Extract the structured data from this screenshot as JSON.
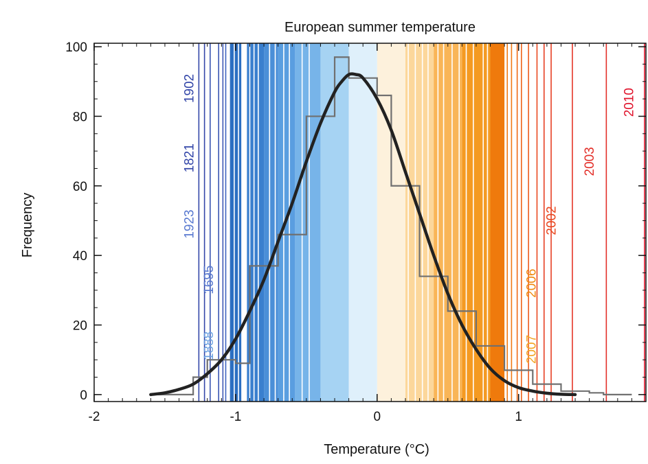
{
  "chart_data": {
    "type": "bar",
    "title": "European summer temperature",
    "xlabel": "Temperature (°C)",
    "ylabel": "Frequency",
    "xlim": [
      -2,
      1.9
    ],
    "ylim": [
      -2,
      101
    ],
    "x_ticks": [
      {
        "value": -2,
        "label": "-2"
      },
      {
        "value": -1,
        "label": "-1"
      },
      {
        "value": 0,
        "label": "0"
      },
      {
        "value": 1,
        "label": "1"
      }
    ],
    "y_ticks": [
      {
        "value": 0,
        "label": "0"
      },
      {
        "value": 20,
        "label": "20"
      },
      {
        "value": 40,
        "label": "40"
      },
      {
        "value": 60,
        "label": "60"
      },
      {
        "value": 80,
        "label": "80"
      },
      {
        "value": 100,
        "label": "100"
      }
    ],
    "grid": false,
    "background_bands": [
      {
        "x0": -1.04,
        "x1": -0.96,
        "color": "#2c6fc2"
      },
      {
        "x0": -0.92,
        "x1": -0.8,
        "color": "#3a7fce"
      },
      {
        "x0": -0.8,
        "x1": -0.7,
        "color": "#4b8fd8"
      },
      {
        "x0": -0.7,
        "x1": -0.58,
        "color": "#5a9ee0"
      },
      {
        "x0": -0.58,
        "x1": -0.4,
        "color": "#77b4e9"
      },
      {
        "x0": -0.4,
        "x1": -0.2,
        "color": "#a6d3f3"
      },
      {
        "x0": -0.2,
        "x1": 0.0,
        "color": "#dff0fb"
      },
      {
        "x0": 0.0,
        "x1": 0.2,
        "color": "#fdf1dc"
      },
      {
        "x0": 0.2,
        "x1": 0.4,
        "color": "#fcd79b"
      },
      {
        "x0": 0.4,
        "x1": 0.6,
        "color": "#f9b557"
      },
      {
        "x0": 0.6,
        "x1": 0.8,
        "color": "#f49a22"
      },
      {
        "x0": 0.8,
        "x1": 0.9,
        "color": "#ef7a0c"
      }
    ],
    "lines": [
      {
        "x": -1.26,
        "color": "#3346a8"
      },
      {
        "x": -1.22,
        "color": "#3346a8"
      },
      {
        "x": -1.18,
        "color": "#3a55b3"
      },
      {
        "x": -1.12,
        "color": "#3a55b3"
      },
      {
        "x": -1.09,
        "color": "#3a55b3"
      },
      {
        "x": -1.07,
        "color": "#3d62c0"
      },
      {
        "x": -1.01,
        "color": "#ffffff"
      },
      {
        "x": -0.98,
        "color": "#ffffff"
      },
      {
        "x": -0.9,
        "color": "#ffffff"
      },
      {
        "x": -0.87,
        "color": "#ffffff"
      },
      {
        "x": -0.84,
        "color": "#ffffff"
      },
      {
        "x": -0.76,
        "color": "#ffffff"
      },
      {
        "x": -0.72,
        "color": "#ffffff"
      },
      {
        "x": -0.66,
        "color": "#ffffff"
      },
      {
        "x": -0.62,
        "color": "#ffffff"
      },
      {
        "x": -0.53,
        "color": "#ffffff"
      },
      {
        "x": -0.48,
        "color": "#ffffff"
      },
      {
        "x": 0.22,
        "color": "#ffffff"
      },
      {
        "x": 0.27,
        "color": "#ffffff"
      },
      {
        "x": 0.32,
        "color": "#ffffff"
      },
      {
        "x": 0.36,
        "color": "#ffffff"
      },
      {
        "x": 0.43,
        "color": "#ffffff"
      },
      {
        "x": 0.47,
        "color": "#ffffff"
      },
      {
        "x": 0.53,
        "color": "#ffffff"
      },
      {
        "x": 0.58,
        "color": "#ffffff"
      },
      {
        "x": 0.63,
        "color": "#ffffff"
      },
      {
        "x": 0.68,
        "color": "#ffffff"
      },
      {
        "x": 0.75,
        "color": "#ffffff"
      },
      {
        "x": 0.78,
        "color": "#ffffff"
      },
      {
        "x": 0.92,
        "color": "#f07a14"
      },
      {
        "x": 0.95,
        "color": "#f07a14"
      },
      {
        "x": 0.99,
        "color": "#f06a14"
      },
      {
        "x": 1.02,
        "color": "#ee6218"
      },
      {
        "x": 1.07,
        "color": "#ec5a1c"
      },
      {
        "x": 1.13,
        "color": "#e94820"
      },
      {
        "x": 1.18,
        "color": "#e63e22"
      },
      {
        "x": 1.23,
        "color": "#e63e22"
      },
      {
        "x": 1.38,
        "color": "#e53526"
      },
      {
        "x": 1.62,
        "color": "#e3302a"
      },
      {
        "x": 1.89,
        "color": "#e0142c"
      }
    ],
    "year_labels": [
      {
        "label": "1902",
        "x": -1.26,
        "y": 88,
        "color": "#3346a8"
      },
      {
        "label": "1821",
        "x": -1.26,
        "y": 68,
        "color": "#3346a8"
      },
      {
        "label": "1923",
        "x": -1.26,
        "y": 49,
        "color": "#5a7ad0"
      },
      {
        "label": "1695",
        "x": -1.12,
        "y": 33,
        "color": "#5a7ad0"
      },
      {
        "label": "1888",
        "x": -1.12,
        "y": 14,
        "color": "#6aa0e0"
      },
      {
        "label": "2007",
        "x": 1.16,
        "y": 13,
        "color": "#f3a424"
      },
      {
        "label": "2006",
        "x": 1.16,
        "y": 32,
        "color": "#f08a10"
      },
      {
        "label": "2002",
        "x": 1.3,
        "y": 50,
        "color": "#e94820"
      },
      {
        "label": "2003",
        "x": 1.57,
        "y": 67,
        "color": "#e3302a"
      },
      {
        "label": "2010",
        "x": 1.85,
        "y": 84,
        "color": "#e0142c"
      }
    ],
    "histogram": {
      "bin_edges": [
        -1.6,
        -1.3,
        -1.2,
        -1.0,
        -0.9,
        -0.7,
        -0.5,
        -0.3,
        -0.2,
        0.0,
        0.1,
        0.3,
        0.5,
        0.7,
        0.9,
        1.1,
        1.3,
        1.5,
        1.6,
        1.8
      ],
      "counts": [
        0,
        5,
        10,
        9,
        37,
        46,
        80,
        97,
        91,
        86,
        60,
        34,
        24,
        14,
        7,
        3,
        1,
        0.5,
        0
      ]
    },
    "fit_curve": {
      "x": [
        -1.6,
        -1.5,
        -1.4,
        -1.3,
        -1.2,
        -1.1,
        -1.0,
        -0.9,
        -0.8,
        -0.7,
        -0.6,
        -0.5,
        -0.4,
        -0.3,
        -0.25,
        -0.2,
        -0.15,
        -0.1,
        0.0,
        0.1,
        0.2,
        0.3,
        0.4,
        0.5,
        0.6,
        0.7,
        0.8,
        0.9,
        1.0,
        1.1,
        1.2,
        1.3,
        1.4
      ],
      "y": [
        0,
        0.5,
        1.5,
        3,
        6,
        10,
        16,
        24,
        33,
        44,
        55,
        67,
        78,
        87,
        90,
        92,
        92,
        91,
        85,
        76,
        64,
        52,
        40,
        29,
        20,
        13,
        7.5,
        4,
        2,
        1,
        0.4,
        0.1,
        0
      ]
    }
  }
}
